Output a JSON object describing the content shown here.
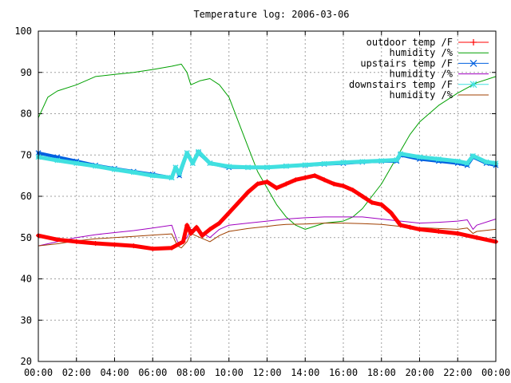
{
  "chart_data": {
    "type": "line",
    "title": "Temperature log: 2006-03-06",
    "xlabel": "",
    "ylabel": "",
    "xlim": [
      0,
      24
    ],
    "ylim": [
      20,
      100
    ],
    "grid": true,
    "legend_position": "top-right",
    "x_ticks": [
      "00:00",
      "02:00",
      "04:00",
      "06:00",
      "08:00",
      "10:00",
      "12:00",
      "14:00",
      "16:00",
      "18:00",
      "20:00",
      "22:00",
      "00:00"
    ],
    "y_ticks": [
      "20",
      "30",
      "40",
      "50",
      "60",
      "70",
      "80",
      "90",
      "100"
    ],
    "series": [
      {
        "name": "outdoor temp /F",
        "color": "#ff0000",
        "marker": "plus",
        "line_width": 5,
        "points": [
          [
            0,
            50.5
          ],
          [
            1,
            49.5
          ],
          [
            2,
            49
          ],
          [
            3,
            48.6
          ],
          [
            4,
            48.3
          ],
          [
            5,
            48
          ],
          [
            6,
            47.3
          ],
          [
            7,
            47.5
          ],
          [
            7.6,
            49
          ],
          [
            7.8,
            53
          ],
          [
            8,
            51
          ],
          [
            8.3,
            52.5
          ],
          [
            8.6,
            50.5
          ],
          [
            9,
            52
          ],
          [
            9.5,
            53.5
          ],
          [
            10,
            56
          ],
          [
            10.5,
            58.5
          ],
          [
            11,
            61
          ],
          [
            11.5,
            63
          ],
          [
            12,
            63.5
          ],
          [
            12.5,
            62
          ],
          [
            13,
            63
          ],
          [
            13.5,
            64
          ],
          [
            14,
            64.5
          ],
          [
            14.5,
            65
          ],
          [
            15,
            64
          ],
          [
            15.5,
            63
          ],
          [
            16,
            62.5
          ],
          [
            16.5,
            61.5
          ],
          [
            17,
            60
          ],
          [
            17.5,
            58.5
          ],
          [
            18,
            58
          ],
          [
            18.5,
            56
          ],
          [
            19,
            53
          ],
          [
            19.5,
            52.5
          ],
          [
            20,
            52
          ],
          [
            21,
            51.5
          ],
          [
            22,
            51
          ],
          [
            23,
            50
          ],
          [
            24,
            49
          ]
        ]
      },
      {
        "name": "humidity /%",
        "color": "#00a000",
        "marker": "none",
        "line_width": 1,
        "points": [
          [
            0,
            79
          ],
          [
            0.5,
            84
          ],
          [
            1,
            85.5
          ],
          [
            2,
            87
          ],
          [
            3,
            89
          ],
          [
            4,
            89.5
          ],
          [
            5,
            90
          ],
          [
            6,
            90.7
          ],
          [
            7,
            91.5
          ],
          [
            7.5,
            92
          ],
          [
            7.8,
            90
          ],
          [
            8,
            87
          ],
          [
            8.5,
            88
          ],
          [
            9,
            88.5
          ],
          [
            9.5,
            87
          ],
          [
            10,
            84
          ],
          [
            10.5,
            78
          ],
          [
            11,
            72
          ],
          [
            11.5,
            66
          ],
          [
            12,
            62
          ],
          [
            12.5,
            58
          ],
          [
            13,
            55
          ],
          [
            13.5,
            53
          ],
          [
            14,
            52
          ],
          [
            15,
            53.5
          ],
          [
            16,
            54
          ],
          [
            16.5,
            55
          ],
          [
            17,
            57
          ],
          [
            17.5,
            60
          ],
          [
            18,
            63
          ],
          [
            18.5,
            67
          ],
          [
            19,
            71
          ],
          [
            19.5,
            75
          ],
          [
            20,
            78
          ],
          [
            21,
            82
          ],
          [
            22,
            85
          ],
          [
            23,
            87.5
          ],
          [
            24,
            89
          ]
        ]
      },
      {
        "name": "upstairs temp /F",
        "color": "#0060e0",
        "marker": "cross",
        "line_width": 4,
        "points": [
          [
            0,
            70.5
          ],
          [
            1,
            69.5
          ],
          [
            2,
            68.5
          ],
          [
            3,
            67.5
          ],
          [
            4,
            66.7
          ],
          [
            5,
            66
          ],
          [
            6,
            65.3
          ],
          [
            7,
            64.5
          ],
          [
            7.2,
            67
          ],
          [
            7.4,
            65
          ],
          [
            7.8,
            70.5
          ],
          [
            8.1,
            68
          ],
          [
            8.4,
            70.5
          ],
          [
            9,
            68
          ],
          [
            10,
            67
          ],
          [
            11,
            67
          ],
          [
            12,
            67
          ],
          [
            13,
            67.3
          ],
          [
            14,
            67.5
          ],
          [
            15,
            67.8
          ],
          [
            16,
            68
          ],
          [
            17,
            68.3
          ],
          [
            18,
            68.5
          ],
          [
            18.8,
            68.5
          ],
          [
            19,
            70
          ],
          [
            20,
            69
          ],
          [
            21,
            68.5
          ],
          [
            22,
            68
          ],
          [
            22.5,
            67.5
          ],
          [
            22.8,
            69.5
          ],
          [
            23.5,
            68
          ],
          [
            24,
            67.5
          ]
        ]
      },
      {
        "name": "humidity /%",
        "color": "#a000c0",
        "marker": "none",
        "line_width": 1,
        "points": [
          [
            0,
            48
          ],
          [
            1,
            49
          ],
          [
            2,
            50
          ],
          [
            3,
            50.7
          ],
          [
            4,
            51.2
          ],
          [
            5,
            51.7
          ],
          [
            6,
            52.3
          ],
          [
            7,
            53
          ],
          [
            7.3,
            49
          ],
          [
            7.5,
            48.5
          ],
          [
            7.8,
            50
          ],
          [
            8,
            52
          ],
          [
            8.5,
            51.5
          ],
          [
            9,
            50
          ],
          [
            9.5,
            52
          ],
          [
            10,
            53
          ],
          [
            11,
            53.5
          ],
          [
            12,
            54
          ],
          [
            13,
            54.5
          ],
          [
            14,
            54.8
          ],
          [
            15,
            55
          ],
          [
            16,
            55
          ],
          [
            17,
            55
          ],
          [
            18,
            54.5
          ],
          [
            19,
            54
          ],
          [
            20,
            53.5
          ],
          [
            21,
            53.7
          ],
          [
            22,
            54
          ],
          [
            22.5,
            54.3
          ],
          [
            22.8,
            52
          ],
          [
            23,
            53
          ],
          [
            24,
            54.5
          ]
        ]
      },
      {
        "name": "downstairs temp /F",
        "color": "#40e0e0",
        "marker": "star",
        "line_width": 5,
        "points": [
          [
            0,
            69.5
          ],
          [
            1,
            68.7
          ],
          [
            2,
            68
          ],
          [
            3,
            67.3
          ],
          [
            4,
            66.5
          ],
          [
            5,
            65.8
          ],
          [
            6,
            65
          ],
          [
            7,
            64.5
          ],
          [
            7.2,
            67
          ],
          [
            7.4,
            65.5
          ],
          [
            7.8,
            70.5
          ],
          [
            8.1,
            68
          ],
          [
            8.4,
            70.8
          ],
          [
            9,
            68
          ],
          [
            10,
            67.2
          ],
          [
            11,
            67
          ],
          [
            12,
            67
          ],
          [
            13,
            67.3
          ],
          [
            14,
            67.6
          ],
          [
            15,
            67.9
          ],
          [
            16,
            68.2
          ],
          [
            17,
            68.4
          ],
          [
            18,
            68.6
          ],
          [
            18.8,
            68.8
          ],
          [
            19,
            70.3
          ],
          [
            20,
            69.5
          ],
          [
            21,
            69
          ],
          [
            22,
            68.5
          ],
          [
            22.5,
            68
          ],
          [
            22.8,
            69.8
          ],
          [
            23.5,
            68.3
          ],
          [
            24,
            68
          ]
        ]
      },
      {
        "name": "humidity /%",
        "color": "#a04000",
        "marker": "none",
        "line_width": 1,
        "points": [
          [
            0,
            48
          ],
          [
            1,
            48.5
          ],
          [
            2,
            49.2
          ],
          [
            3,
            49.7
          ],
          [
            4,
            50
          ],
          [
            5,
            50.3
          ],
          [
            6,
            50.6
          ],
          [
            7,
            50.9
          ],
          [
            7.3,
            48
          ],
          [
            7.5,
            47.5
          ],
          [
            7.8,
            49
          ],
          [
            8,
            51
          ],
          [
            8.5,
            50
          ],
          [
            9,
            49
          ],
          [
            9.5,
            50.5
          ],
          [
            10,
            51.5
          ],
          [
            11,
            52.2
          ],
          [
            12,
            52.7
          ],
          [
            12.5,
            53
          ],
          [
            13,
            53.2
          ],
          [
            14,
            53.3
          ],
          [
            15,
            53.5
          ],
          [
            16,
            53.5
          ],
          [
            17,
            53.4
          ],
          [
            18,
            53.2
          ],
          [
            19,
            52.7
          ],
          [
            20,
            52.4
          ],
          [
            21,
            52.2
          ],
          [
            22,
            52
          ],
          [
            22.5,
            52.3
          ],
          [
            22.8,
            51
          ],
          [
            23,
            51.5
          ],
          [
            24,
            52
          ]
        ]
      }
    ]
  }
}
